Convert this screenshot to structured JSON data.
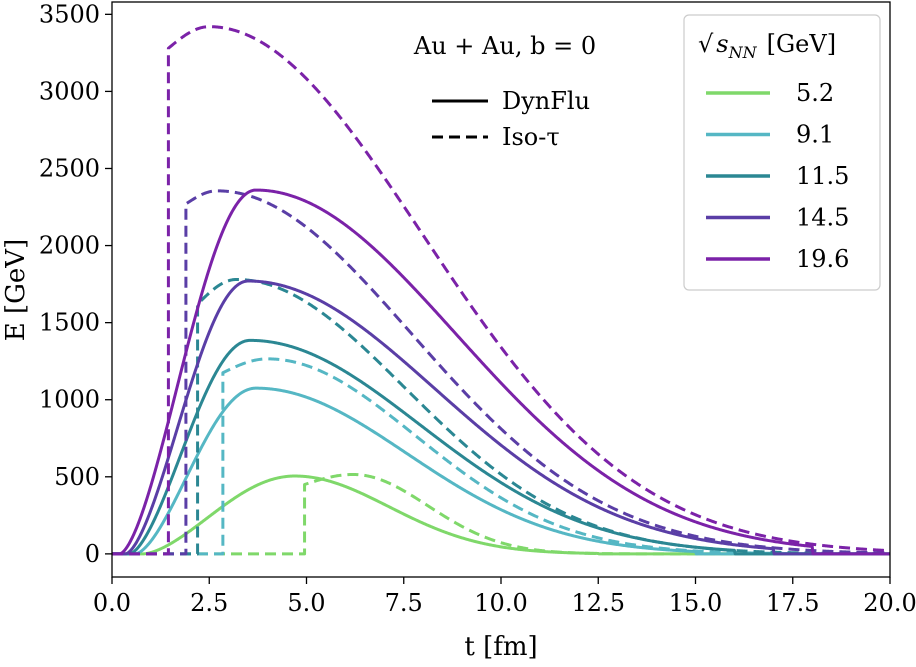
{
  "chart_data": {
    "type": "line",
    "xlabel": "t [fm]",
    "ylabel": "E [GeV]",
    "xlim": [
      0,
      20
    ],
    "ylim": [
      -150,
      3580
    ],
    "xticks": [
      "0.0",
      "2.5",
      "5.0",
      "7.5",
      "10.0",
      "12.5",
      "15.0",
      "17.5",
      "20.0"
    ],
    "yticks": [
      "0",
      "500",
      "1000",
      "1500",
      "2000",
      "2500",
      "3000",
      "3500"
    ],
    "grid": false,
    "annotation": "Au + Au,  b = 0",
    "style_legend": {
      "placement": "upper-center",
      "entries": [
        {
          "label": "DynFlu",
          "style": "solid"
        },
        {
          "label": "Iso-τ",
          "style": "dashed"
        }
      ]
    },
    "legend": {
      "placement": "top-right",
      "title": "√s_NN [GeV]",
      "title_main": "√",
      "title_s": "s",
      "title_sub": "NN",
      "title_unit": "[GeV]"
    },
    "series": [
      {
        "name": "5.2",
        "color": "#7fd86a",
        "dynflu": {
          "start": 0.8,
          "peak_t": 4.7,
          "peak_e": 505,
          "end": 10.5
        },
        "iso": {
          "start": 4.95,
          "jump_e": 450,
          "peak_t": 6.2,
          "peak_e": 515,
          "end": 11.0
        }
      },
      {
        "name": "9.1",
        "color": "#55b7c4",
        "dynflu": {
          "start": 0.6,
          "peak_t": 3.7,
          "peak_e": 1075,
          "end": 13.0
        },
        "iso": {
          "start": 2.85,
          "jump_e": 1175,
          "peak_t": 4.0,
          "peak_e": 1265,
          "end": 13.5
        }
      },
      {
        "name": "11.5",
        "color": "#2b8793",
        "dynflu": {
          "start": 0.45,
          "peak_t": 3.55,
          "peak_e": 1385,
          "end": 14.0
        },
        "iso": {
          "start": 2.2,
          "jump_e": 1620,
          "peak_t": 3.2,
          "peak_e": 1780,
          "end": 14.0
        }
      },
      {
        "name": "14.5",
        "color": "#5a3ea6",
        "dynflu": {
          "start": 0.35,
          "peak_t": 3.5,
          "peak_e": 1770,
          "end": 15.0
        },
        "iso": {
          "start": 1.9,
          "jump_e": 2270,
          "peak_t": 2.7,
          "peak_e": 2355,
          "end": 15.2
        }
      },
      {
        "name": "19.6",
        "color": "#7b22a8",
        "dynflu": {
          "start": 0.2,
          "peak_t": 3.7,
          "peak_e": 2360,
          "end": 16.0
        },
        "iso": {
          "start": 1.45,
          "jump_e": 3280,
          "peak_t": 2.5,
          "peak_e": 3420,
          "end": 16.2
        }
      }
    ]
  }
}
